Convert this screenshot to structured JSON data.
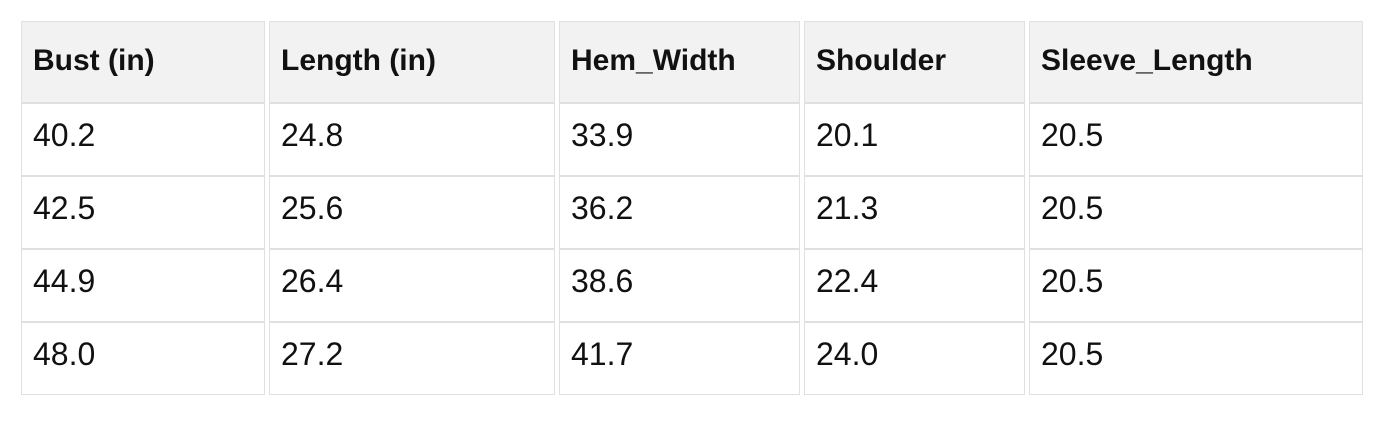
{
  "chart_data": {
    "type": "table",
    "title": "",
    "columns": [
      "Bust (in)",
      "Length (in)",
      "Hem_Width",
      "Shoulder",
      "Sleeve_Length"
    ],
    "rows": [
      [
        "40.2",
        "24.8",
        "33.9",
        "20.1",
        "20.5"
      ],
      [
        "42.5",
        "25.6",
        "36.2",
        "21.3",
        "20.5"
      ],
      [
        "44.9",
        "26.4",
        "38.6",
        "22.4",
        "20.5"
      ],
      [
        "48.0",
        "27.2",
        "41.7",
        "24.0",
        "20.5"
      ]
    ]
  },
  "colors": {
    "header_background": "#f2f2f2",
    "cell_background": "#ffffff",
    "border": "#e0e0e0",
    "text": "#111111",
    "page_background": "#ffffff"
  }
}
